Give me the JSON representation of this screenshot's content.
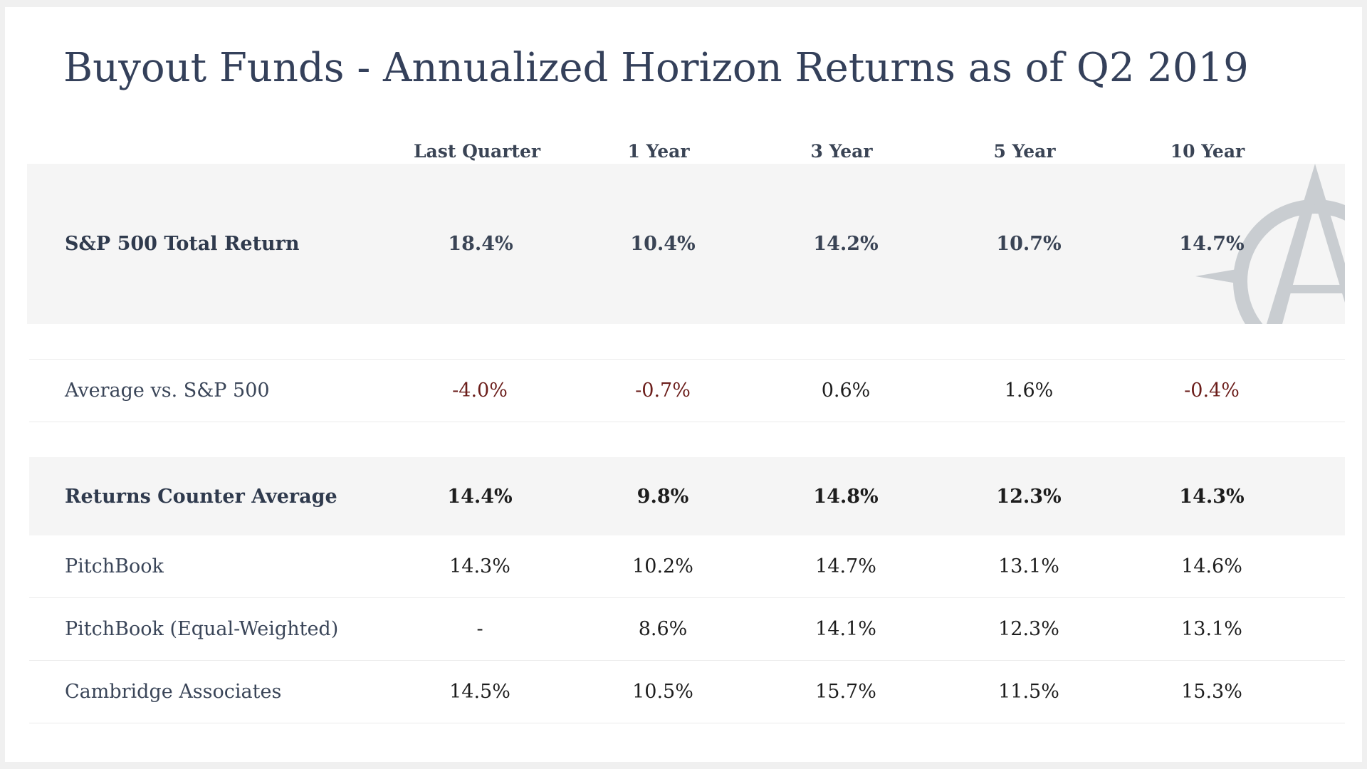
{
  "title": "Buyout Funds - Annualized Horizon Returns as of Q2 2019",
  "columns": [
    "Last Quarter",
    "1 Year",
    "3 Year",
    "5 Year",
    "10 Year"
  ],
  "rows": {
    "sp500": {
      "label": "S&P 500 Total Return",
      "values": [
        "18.4%",
        "10.4%",
        "14.2%",
        "10.7%",
        "14.7%"
      ]
    },
    "avg_vs_sp": {
      "label": "Average vs. S&P 500",
      "values": [
        "-4.0%",
        "-0.7%",
        "0.6%",
        "1.6%",
        "-0.4%"
      ]
    },
    "counter_avg": {
      "label": "Returns Counter Average",
      "values": [
        "14.4%",
        "9.8%",
        "14.8%",
        "12.3%",
        "14.3%"
      ]
    },
    "pitchbook": {
      "label": "PitchBook",
      "values": [
        "14.3%",
        "10.2%",
        "14.7%",
        "13.1%",
        "14.6%"
      ]
    },
    "pitchbook_eq": {
      "label": "PitchBook (Equal-Weighted)",
      "values": [
        "-",
        "8.6%",
        "14.1%",
        "12.3%",
        "13.1%"
      ]
    },
    "cambridge": {
      "label": "Cambridge Associates",
      "values": [
        "14.5%",
        "10.5%",
        "15.7%",
        "11.5%",
        "15.3%"
      ]
    }
  },
  "colors": {
    "title": "#34405a",
    "negative": "#6b1d1a",
    "band": "#f5f5f5",
    "watermark": "#c9cdd1"
  },
  "icons": {
    "watermark": "compass-a-logo-icon"
  }
}
